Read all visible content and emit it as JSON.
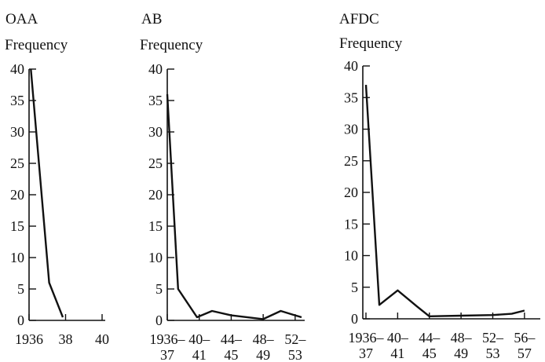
{
  "chart_data": [
    {
      "type": "line",
      "title": "OAA",
      "ylabel": "Frequency",
      "xlabel": "",
      "ylim": [
        0,
        40
      ],
      "yticks": [
        0,
        5,
        10,
        15,
        20,
        25,
        30,
        35,
        40
      ],
      "xticks": [
        {
          "x": 1936,
          "label": [
            "1936",
            ""
          ]
        },
        {
          "x": 1938,
          "label": [
            "38",
            ""
          ]
        },
        {
          "x": 1940,
          "label": [
            "40",
            ""
          ]
        }
      ],
      "xlim": [
        1936,
        1940
      ],
      "series": [
        {
          "values": [
            [
              1936.1,
              40
            ],
            [
              1937.1,
              6
            ],
            [
              1937.85,
              0.5
            ]
          ]
        }
      ]
    },
    {
      "type": "line",
      "title": "AB",
      "ylabel": "Frequency",
      "xlabel": "",
      "ylim": [
        0,
        40
      ],
      "yticks": [
        0,
        5,
        10,
        15,
        20,
        25,
        30,
        35,
        40
      ],
      "xticks": [
        {
          "x": 0,
          "label": [
            "1936–",
            "37"
          ]
        },
        {
          "x": 1,
          "label": [
            "40–",
            "41"
          ]
        },
        {
          "x": 2,
          "label": [
            "44–",
            "45"
          ]
        },
        {
          "x": 3,
          "label": [
            "48–",
            "49"
          ]
        },
        {
          "x": 4,
          "label": [
            "52–",
            "53"
          ]
        }
      ],
      "xlim": [
        0,
        4.2
      ],
      "series": [
        {
          "values": [
            [
              0,
              36
            ],
            [
              0.34,
              5
            ],
            [
              0.93,
              0.5
            ],
            [
              1.4,
              1.5
            ],
            [
              2.0,
              0.8
            ],
            [
              3.0,
              0.2
            ],
            [
              3.55,
              1.5
            ],
            [
              4.0,
              0.8
            ],
            [
              4.2,
              0.5
            ]
          ]
        }
      ]
    },
    {
      "type": "line",
      "title": "AFDC",
      "ylabel": "Frequency",
      "xlabel": "",
      "ylim": [
        0,
        40
      ],
      "yticks": [
        0,
        5,
        10,
        15,
        20,
        25,
        30,
        35,
        40
      ],
      "xticks": [
        {
          "x": 0,
          "label": [
            "1936–",
            "37"
          ]
        },
        {
          "x": 1,
          "label": [
            "40–",
            "41"
          ]
        },
        {
          "x": 2,
          "label": [
            "44–",
            "45"
          ]
        },
        {
          "x": 3,
          "label": [
            "48–",
            "49"
          ]
        },
        {
          "x": 4,
          "label": [
            "52–",
            "53"
          ]
        },
        {
          "x": 5,
          "label": [
            "56–",
            "57"
          ]
        }
      ],
      "xlim": [
        0,
        5.4
      ],
      "series": [
        {
          "values": [
            [
              0,
              37
            ],
            [
              0.42,
              2.2
            ],
            [
              1.0,
              4.5
            ],
            [
              1.6,
              2.0
            ],
            [
              2.0,
              0.4
            ],
            [
              3.0,
              0.5
            ],
            [
              4.0,
              0.6
            ],
            [
              4.6,
              0.8
            ],
            [
              5.0,
              1.3
            ]
          ]
        }
      ]
    }
  ]
}
